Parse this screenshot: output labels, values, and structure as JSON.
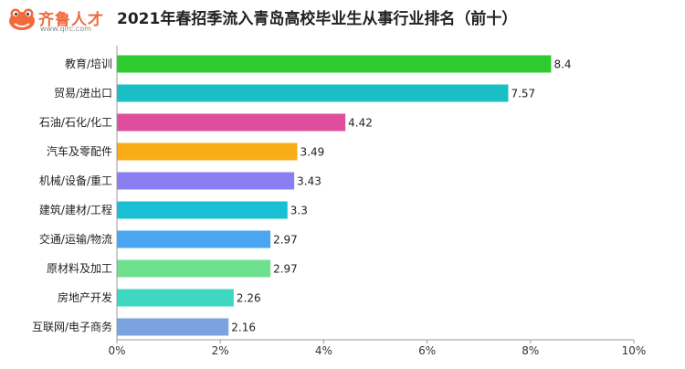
{
  "logo": {
    "icon": "frog-logo-icon",
    "text": "齐鲁人才",
    "subtext": "www.qlrc.com",
    "color": "#f26a3c"
  },
  "chart_data": {
    "type": "bar",
    "orientation": "horizontal",
    "title": "2021年春招季流入青岛高校毕业生从事行业排名（前十）",
    "categories": [
      "教育/培训",
      "贸易/进出口",
      "石油/石化/化工",
      "汽车及零配件",
      "机械/设备/重工",
      "建筑/建材/工程",
      "交通/运输/物流",
      "原材料及加工",
      "房地产开发",
      "互联网/电子商务"
    ],
    "values": [
      8.4,
      7.57,
      4.42,
      3.49,
      3.43,
      3.3,
      2.97,
      2.97,
      2.26,
      2.16
    ],
    "data_labels": [
      "8.4",
      "7.57",
      "4.42",
      "3.49",
      "3.43",
      "3.3",
      "2.97",
      "2.97",
      "2.26",
      "2.16"
    ],
    "colors": [
      "#2ecc2e",
      "#19bfc4",
      "#de4e9c",
      "#f9ab18",
      "#8b7ef0",
      "#19c0d4",
      "#4aa6f0",
      "#6ee08e",
      "#3ed8c2",
      "#7ba3e0"
    ],
    "xlim": [
      0,
      10
    ],
    "xticks": [
      0,
      2,
      4,
      6,
      8,
      10
    ],
    "xtick_labels": [
      "0%",
      "2%",
      "4%",
      "6%",
      "8%",
      "10%"
    ],
    "grid": false,
    "legend": "none"
  }
}
